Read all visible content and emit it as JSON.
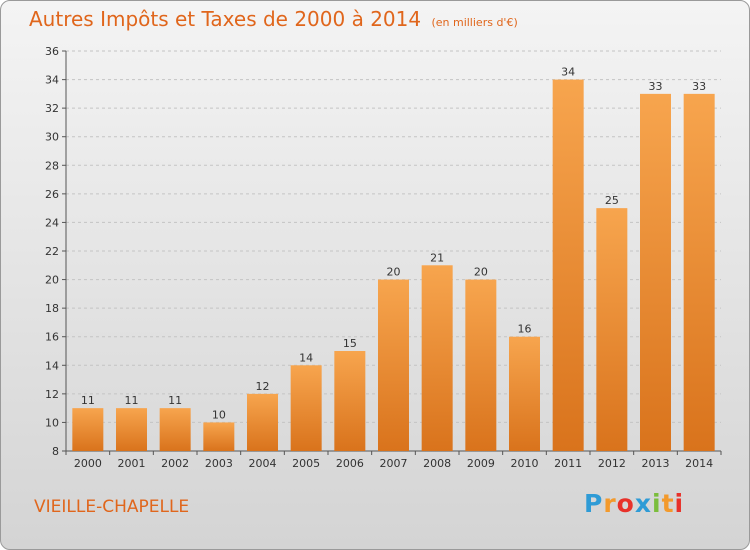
{
  "title": {
    "main": "Autres Impôts et Taxes de 2000 à 2014",
    "unit": "(en milliers d'€)"
  },
  "place": "VIEILLE-CHAPELLE",
  "logo": {
    "letters": [
      "P",
      "r",
      "o",
      "x",
      "i",
      "t",
      "i"
    ],
    "colors": [
      "#2e9bd6",
      "#f39a2c",
      "#e8312a",
      "#2e9bd6",
      "#7bbd3c",
      "#f39a2c",
      "#e8312a"
    ]
  },
  "chart_data": {
    "type": "bar",
    "title": "Autres Impôts et Taxes de 2000 à 2014",
    "subtitle": "(en milliers d'€)",
    "xlabel": "",
    "ylabel": "",
    "categories": [
      "2000",
      "2001",
      "2002",
      "2003",
      "2004",
      "2005",
      "2006",
      "2007",
      "2008",
      "2009",
      "2010",
      "2011",
      "2012",
      "2013",
      "2014"
    ],
    "values": [
      11,
      11,
      11,
      10,
      12,
      14,
      15,
      20,
      21,
      20,
      16,
      34,
      25,
      33,
      33
    ],
    "ylim": [
      8,
      36
    ],
    "yticks": [
      8,
      10,
      12,
      14,
      16,
      18,
      20,
      22,
      24,
      26,
      28,
      30,
      32,
      34,
      36
    ],
    "grid": true,
    "colors": {
      "bar_light": "#f7a54e",
      "bar_dark": "#d9731c",
      "text": "#333333",
      "accent": "#e0661c"
    }
  }
}
